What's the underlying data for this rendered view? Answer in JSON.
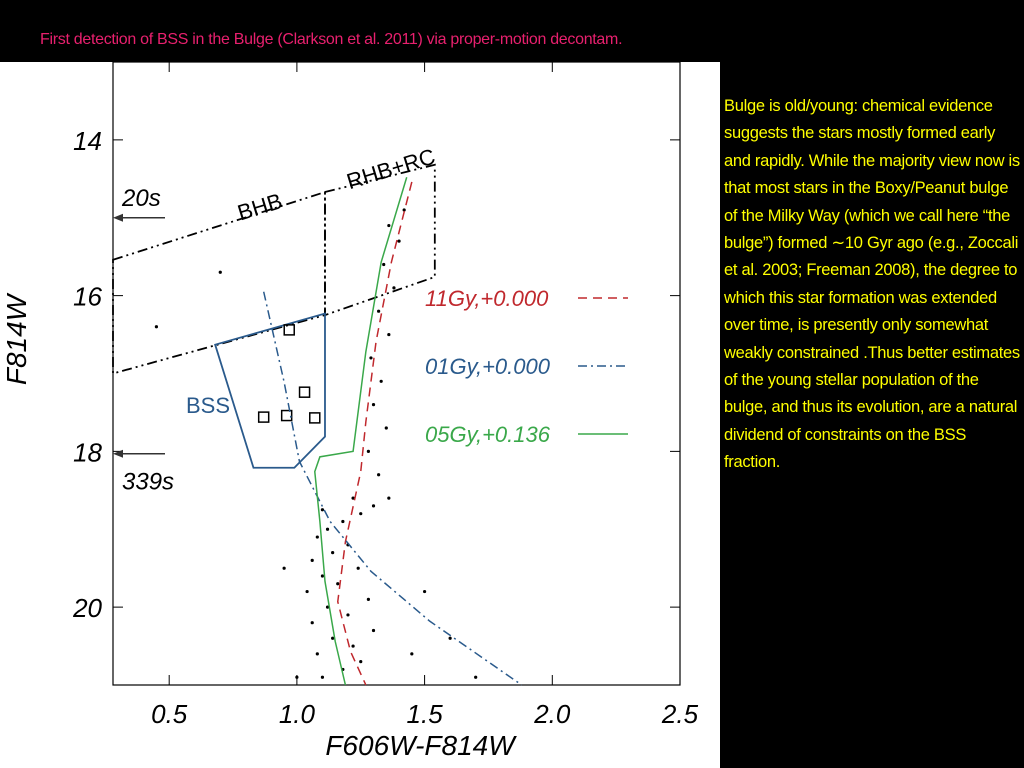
{
  "slide": {
    "title": "First detection of BSS in the Bulge (Clarkson et al. 2011) via proper-motion decontam.",
    "body": "Bulge is old/young: chemical evidence suggests the stars mostly formed early and rapidly. While the majority view now is that most stars in the Boxy/Peanut bulge of the Milky Way (which we call here “the bulge”) formed ∼10 Gyr ago (e.g., Zoccali et al. 2003; Freeman 2008), the degree to which this star formation was extended over time, is presently only somewhat weakly constrained .Thus better estimates of the young stellar population of the bulge, and thus its evolution, are a natural dividend of constraints on the BSS fraction."
  },
  "chart_data": {
    "type": "scatter",
    "x_label": "F606W-F814W",
    "y_label": "F814W",
    "xlim": [
      0.28,
      2.5
    ],
    "ylim": [
      21.0,
      13.0
    ],
    "xticks": [
      0.5,
      {
        "value": 1,
        "label": "1.0"
      },
      1.5,
      {
        "value": 2,
        "label": "2.0"
      },
      2.5
    ],
    "yticks": [
      14,
      16,
      18,
      20
    ],
    "legend": "right",
    "points": {
      "color": "#000000",
      "x": [
        1.1,
        1.18,
        1.25,
        1.08,
        1.22,
        1.14,
        1.3,
        1.06,
        1.2,
        1.12,
        1.28,
        1.04,
        1.16,
        1.1,
        1.24,
        1.06,
        1.14,
        1.2,
        1.08,
        1.12,
        1.18,
        1.25,
        1.3,
        1.1,
        1.36,
        1.22,
        1.32,
        1.28,
        1.35,
        1.3,
        1.33,
        1.29,
        1.36,
        1.32,
        1.38,
        1.34,
        1.4,
        1.36,
        1.42,
        1.45,
        1.6,
        0.95,
        1.5,
        0.7,
        0.45,
        1.7,
        1.0
      ],
      "y": [
        20.9,
        20.8,
        20.7,
        20.6,
        20.5,
        20.4,
        20.3,
        20.2,
        20.1,
        20.0,
        19.9,
        19.8,
        19.7,
        19.6,
        19.5,
        19.4,
        19.3,
        19.2,
        19.1,
        19.0,
        18.9,
        18.8,
        18.7,
        18.75,
        18.6,
        18.6,
        18.3,
        18.0,
        17.7,
        17.4,
        17.1,
        16.8,
        16.5,
        16.2,
        15.9,
        15.6,
        15.3,
        15.1,
        14.9,
        20.6,
        20.4,
        19.5,
        19.8,
        15.7,
        16.4,
        20.9,
        20.9
      ]
    },
    "markers": {
      "color": "#000000",
      "x": [
        0.97,
        1.03,
        0.87,
        0.96,
        1.07
      ],
      "y": [
        16.44,
        17.24,
        17.56,
        17.54,
        17.57
      ]
    },
    "series": [
      {
        "name": "11Gy,+0.000",
        "color": "#c0282d",
        "dash": "dash",
        "x": [
          1.45,
          1.37,
          1.31,
          1.27,
          1.25,
          1.19,
          1.16,
          1.21,
          1.27
        ],
        "y": [
          14.54,
          15.57,
          16.59,
          17.62,
          18.26,
          19.16,
          19.93,
          20.57,
          21.0
        ]
      },
      {
        "name": "01Gy,+0.000",
        "color": "#2a5a8c",
        "dash": "dashdot",
        "x": [
          0.87,
          0.95,
          1.01,
          1.13,
          1.29,
          1.52,
          1.88
        ],
        "y": [
          15.95,
          17.11,
          18.13,
          18.9,
          19.54,
          20.18,
          21.0
        ]
      },
      {
        "name": "05Gy,+0.136",
        "color": "#3aa84a",
        "dash": "solid",
        "x": [
          1.43,
          1.33,
          1.27,
          1.22,
          1.09,
          1.07,
          1.09,
          1.11,
          1.15,
          1.19
        ],
        "y": [
          14.48,
          15.57,
          16.72,
          18.0,
          18.07,
          18.26,
          18.9,
          19.67,
          20.44,
          21.0
        ]
      }
    ],
    "regions": [
      {
        "label": "BHB",
        "color": "#000000",
        "x": [
          0.28,
          1.11,
          1.11,
          0.28
        ],
        "y": [
          15.54,
          14.67,
          16.25,
          17.0
        ]
      },
      {
        "label": "RHB+RC",
        "color": "#000000",
        "x": [
          1.11,
          1.54,
          1.54,
          1.11
        ],
        "y": [
          14.67,
          14.32,
          15.76,
          16.25
        ]
      },
      {
        "label": "BSS",
        "color": "#2a5a8c",
        "x": [
          0.68,
          1.11,
          1.11,
          0.99,
          0.83
        ],
        "y": [
          16.63,
          16.23,
          17.81,
          18.21,
          18.21
        ]
      }
    ],
    "annotations": [
      {
        "text": "20s",
        "y": 15.0
      },
      {
        "text": "339s",
        "y": 18.03
      }
    ]
  }
}
